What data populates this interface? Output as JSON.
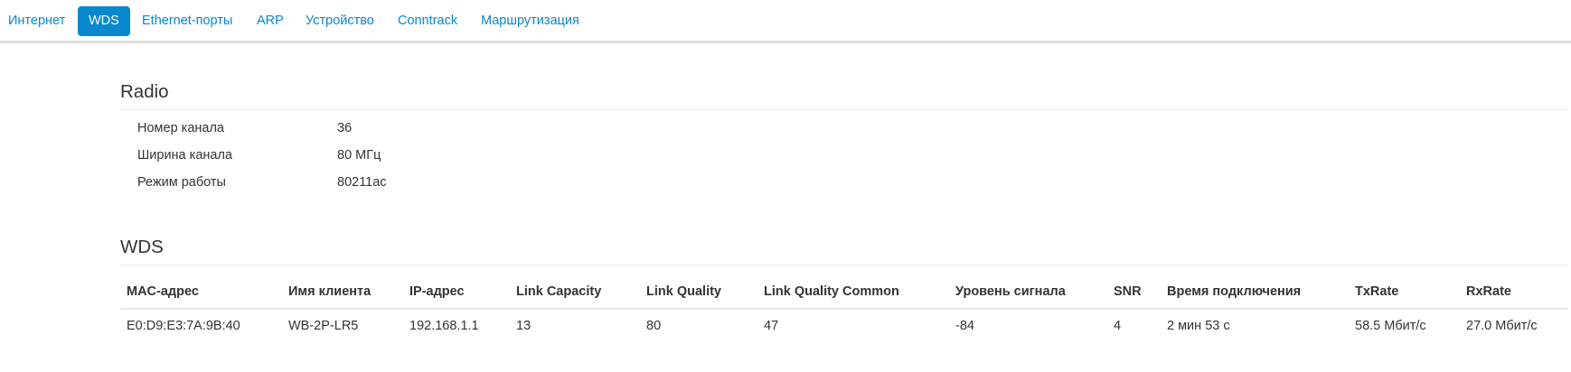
{
  "tabs": [
    {
      "label": "Интернет",
      "active": false
    },
    {
      "label": "WDS",
      "active": true
    },
    {
      "label": "Ethernet-порты",
      "active": false
    },
    {
      "label": "ARP",
      "active": false
    },
    {
      "label": "Устройство",
      "active": false
    },
    {
      "label": "Conntrack",
      "active": false
    },
    {
      "label": "Маршрутизация",
      "active": false
    }
  ],
  "radio": {
    "title": "Radio",
    "rows": [
      {
        "label": "Номер канала",
        "value": "36"
      },
      {
        "label": "Ширина канала",
        "value": "80 МГц"
      },
      {
        "label": "Режим работы",
        "value": "80211ac"
      }
    ]
  },
  "wds": {
    "title": "WDS",
    "columns": [
      "MAC-адрес",
      "Имя клиента",
      "IP-адрес",
      "Link Capacity",
      "Link Quality",
      "Link Quality Common",
      "Уровень сигнала",
      "SNR",
      "Время подключения",
      "TxRate",
      "RxRate"
    ],
    "rows": [
      [
        "E0:D9:E3:7A:9B:40",
        "WB-2P-LR5",
        "192.168.1.1",
        "13",
        "80",
        "47",
        "-84",
        "4",
        "2 мин 53 с",
        "58.5 Мбит/с",
        "27.0 Мбит/с"
      ]
    ]
  }
}
